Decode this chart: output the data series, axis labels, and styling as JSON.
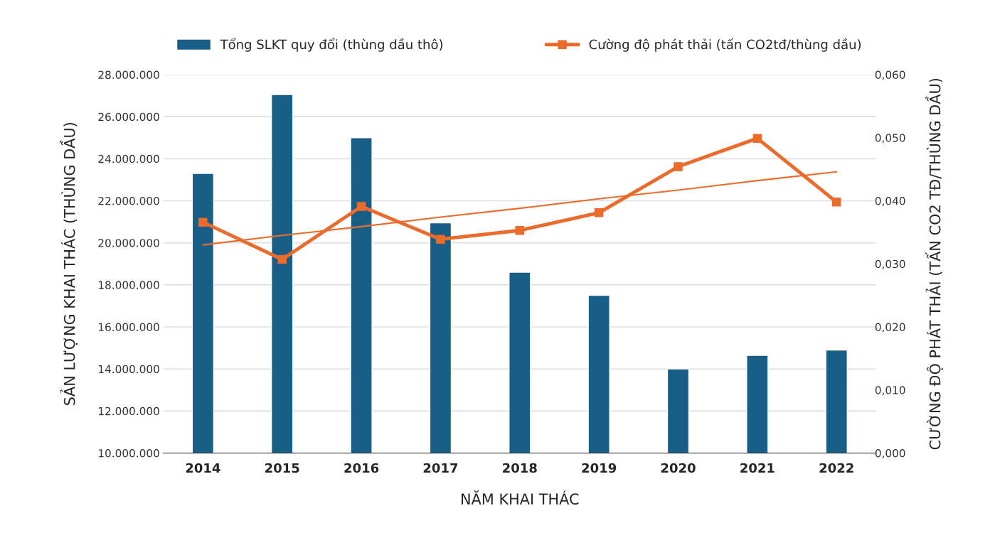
{
  "chart_data": {
    "type": "bar",
    "xlabel": "NĂM KHAI THÁC",
    "ylabel": "SẢN LƯỢNG KHAI THÁC (THÙNG DẦU)",
    "y2label": "CƯỜNG ĐỘ PHÁT THẢI (TẤN CO2 TĐ/THÙNG DẦU)",
    "categories": [
      "2014",
      "2015",
      "2016",
      "2017",
      "2018",
      "2019",
      "2020",
      "2021",
      "2022"
    ],
    "series": [
      {
        "name": "Tổng SLKT quy đổi (thùng dầu thô)",
        "color": "#175f87",
        "values": [
          23300000,
          27050000,
          25000000,
          20950000,
          18600000,
          17500000,
          14000000,
          14650000,
          14900000
        ]
      },
      {
        "name": "Cường độ phát thải (tấn CO2tđ/thùng dầu)",
        "type": "line",
        "axis": "y2",
        "color": "#ec6b2b",
        "marker": "square",
        "values": [
          0.0366,
          0.0307,
          0.0391,
          0.0339,
          0.0353,
          0.0381,
          0.0454,
          0.0499,
          0.0398
        ]
      },
      {
        "type": "line",
        "axis": "y2",
        "color": "#ec6b2b",
        "values": [
          0.033,
          0.0345,
          0.0359,
          0.0374,
          0.0388,
          0.0403,
          0.0417,
          0.0432,
          0.0446
        ]
      }
    ],
    "ylim": [
      10000000,
      28000000
    ],
    "yticks": [
      {
        "value": 10000000,
        "label": "10.000.000"
      },
      {
        "value": 12000000,
        "label": "12.000.000"
      },
      {
        "value": 14000000,
        "label": "14.000.000"
      },
      {
        "value": 16000000,
        "label": "16.000.000"
      },
      {
        "value": 18000000,
        "label": "18.000.000"
      },
      {
        "value": 20000000,
        "label": "20.000.000"
      },
      {
        "value": 22000000,
        "label": "22.000.000"
      },
      {
        "value": 24000000,
        "label": "24.000.000"
      },
      {
        "value": 26000000,
        "label": "26.000.000"
      },
      {
        "value": 28000000,
        "label": "28.000.000"
      }
    ],
    "y2lim": [
      0,
      0.06
    ],
    "y2ticks": [
      {
        "value": 0,
        "label": "0,000"
      },
      {
        "value": 0.01,
        "label": "0,010"
      },
      {
        "value": 0.02,
        "label": "0,020"
      },
      {
        "value": 0.03,
        "label": "0,030"
      },
      {
        "value": 0.04,
        "label": "0,040"
      },
      {
        "value": 0.05,
        "label": "0,050"
      },
      {
        "value": 0.06,
        "label": "0,060"
      }
    ],
    "grid": "y",
    "legend": "top"
  }
}
